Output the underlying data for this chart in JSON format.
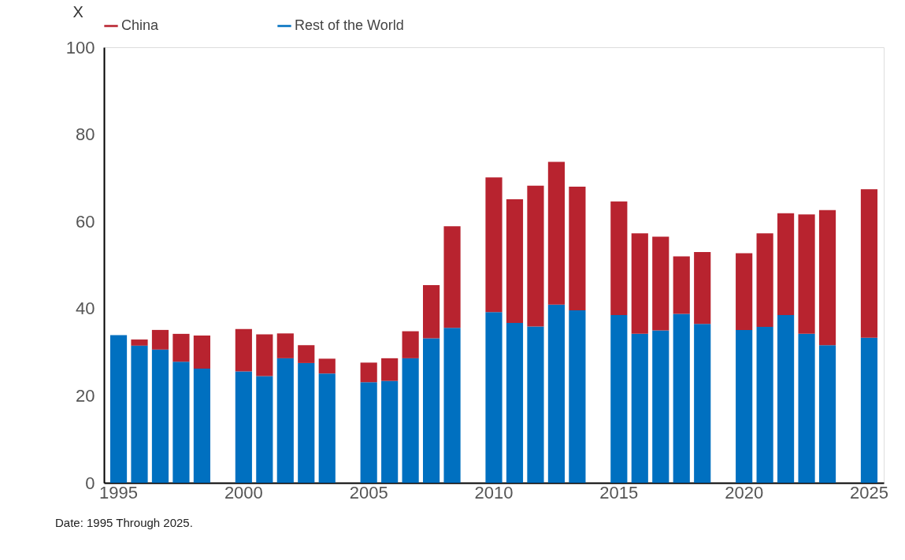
{
  "chart_data": {
    "type": "bar",
    "stacked": true,
    "ylabel": "X",
    "legend": "top",
    "grid": false,
    "categories": [
      "1995",
      null,
      null,
      null,
      null,
      null,
      "2000",
      null,
      null,
      null,
      null,
      null,
      "2005",
      null,
      null,
      null,
      null,
      null,
      "2010",
      null,
      null,
      null,
      null,
      null,
      "2015",
      null,
      null,
      null,
      null,
      null,
      "2020",
      null,
      null,
      null,
      null,
      null,
      "2025"
    ],
    "series": [
      {
        "name": "Rest of the World",
        "color": "#0070c0",
        "values": [
          33.9,
          31.5,
          30.6,
          27.8,
          26.2,
          null,
          25.6,
          24.5,
          28.6,
          27.5,
          25.1,
          null,
          23.1,
          23.4,
          28.6,
          33.2,
          35.6,
          null,
          39.2,
          36.7,
          35.9,
          40.9,
          39.6,
          null,
          38.5,
          34.2,
          35.0,
          38.8,
          36.5,
          null,
          35.1,
          35.8,
          38.5,
          34.2,
          31.6,
          null,
          33.3
        ]
      },
      {
        "name": "China",
        "color": "#b8232f",
        "values": [
          0,
          1.4,
          4.5,
          6.4,
          7.6,
          null,
          9.7,
          9.6,
          5.7,
          4.1,
          3.4,
          null,
          4.5,
          5.2,
          6.2,
          12.2,
          23.3,
          null,
          30.9,
          28.4,
          32.3,
          32.8,
          28.4,
          null,
          26.1,
          23.1,
          21.5,
          13.2,
          16.5,
          null,
          17.6,
          21.5,
          23.4,
          27.4,
          31.0,
          null,
          34.1
        ]
      }
    ],
    "ylim": [
      0,
      100
    ],
    "yticks": [
      0,
      20,
      40,
      60,
      80,
      100
    ],
    "annotations": [
      "Date: 1995 Through 2025."
    ]
  }
}
